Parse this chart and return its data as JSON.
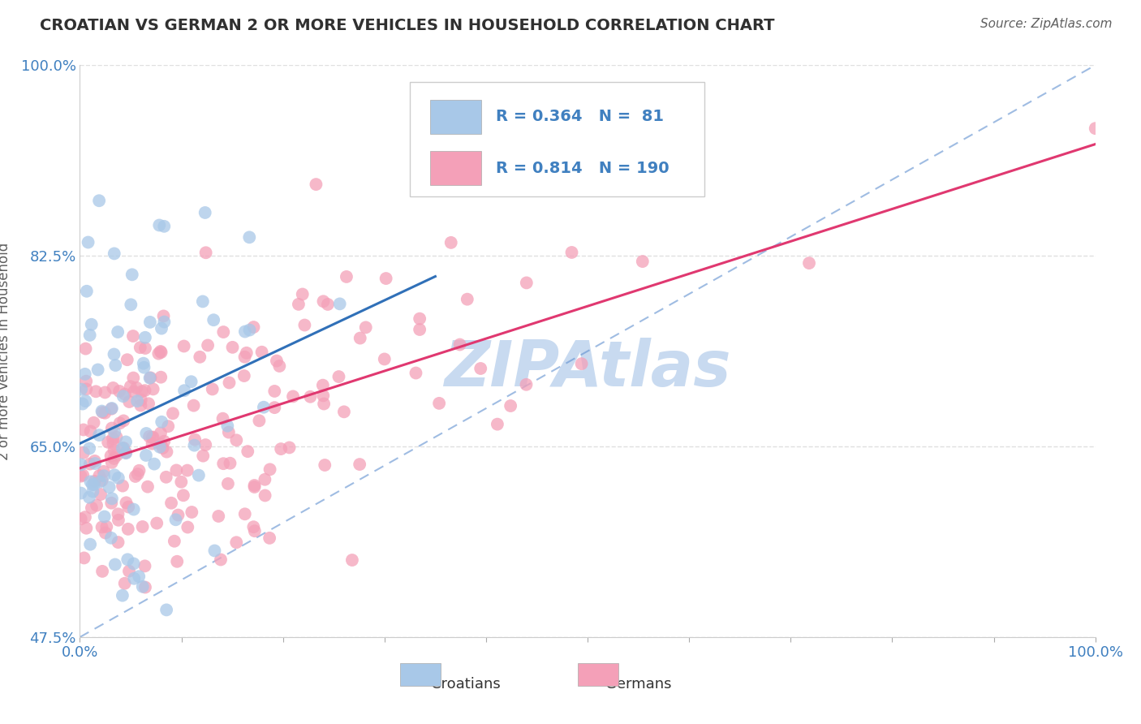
{
  "title": "CROATIAN VS GERMAN 2 OR MORE VEHICLES IN HOUSEHOLD CORRELATION CHART",
  "source_text": "Source: ZipAtlas.com",
  "ylabel": "2 or more Vehicles in Household",
  "xlim": [
    0.0,
    100.0
  ],
  "ylim": [
    47.5,
    100.0
  ],
  "ytick_values": [
    47.5,
    65.0,
    82.5,
    100.0
  ],
  "ytick_labels": [
    "47.5%",
    "65.0%",
    "82.5%",
    "100.0%"
  ],
  "legend_blue_R": "0.364",
  "legend_blue_N": "81",
  "legend_pink_R": "0.814",
  "legend_pink_N": "190",
  "blue_scatter_color": "#a8c8e8",
  "pink_scatter_color": "#f4a0b8",
  "blue_line_color": "#3070b8",
  "pink_line_color": "#e03870",
  "diag_line_color": "#6090d0",
  "tick_label_color": "#4080c0",
  "ylabel_color": "#606060",
  "title_color": "#303030",
  "source_color": "#606060",
  "legend_text_color": "#4080c0",
  "watermark_color_hex": "#c8daf0",
  "background": "#ffffff",
  "grid_color": "#e0e0e0",
  "seed": 12345,
  "n_croatian": 81,
  "n_german": 190
}
